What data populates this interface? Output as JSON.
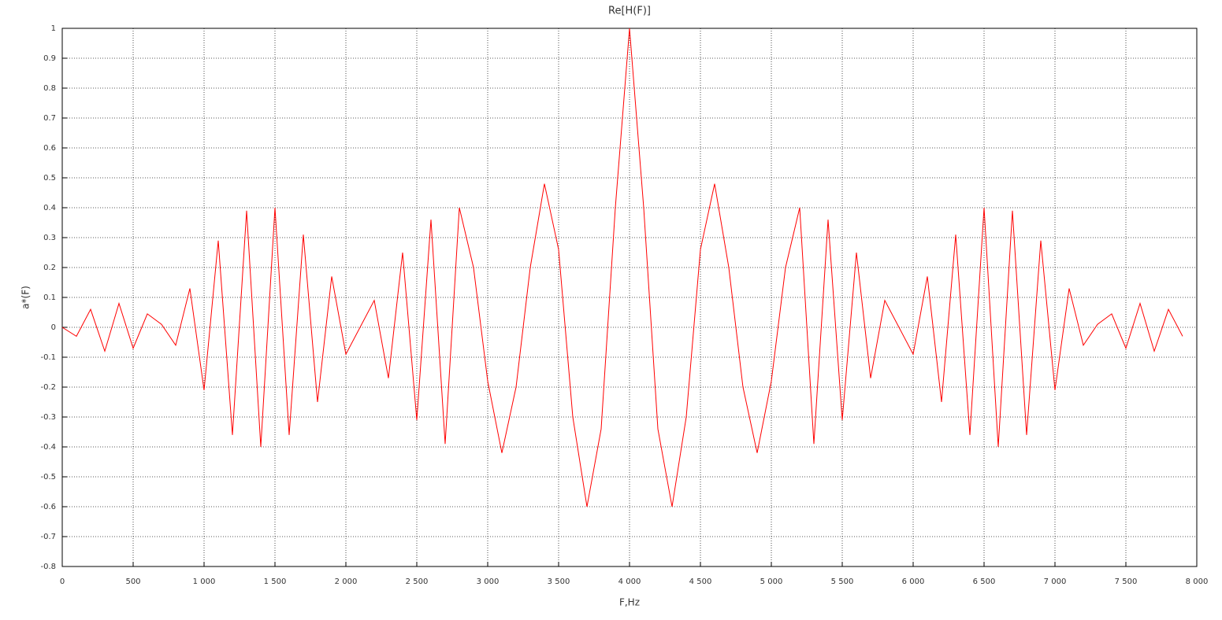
{
  "chart_data": {
    "type": "line",
    "title": "Re[H(F)]",
    "x_label": "F,Hz",
    "y_label": "a*(F)",
    "x": [
      0,
      100,
      200,
      300,
      400,
      500,
      600,
      700,
      800,
      900,
      1000,
      1100,
      1200,
      1300,
      1400,
      1500,
      1600,
      1700,
      1800,
      1900,
      2000,
      2100,
      2200,
      2300,
      2400,
      2500,
      2600,
      2700,
      2800,
      2900,
      3000,
      3100,
      3200,
      3300,
      3400,
      3500,
      3600,
      3700,
      3800,
      3900,
      4000,
      4100,
      4200,
      4300,
      4400,
      4500,
      4600,
      4700,
      4800,
      4900,
      5000,
      5100,
      5200,
      5300,
      5400,
      5500,
      5600,
      5700,
      5800,
      5900,
      6000,
      6100,
      6200,
      6300,
      6400,
      6500,
      6600,
      6700,
      6800,
      6900,
      7000,
      7100,
      7200,
      7300,
      7400,
      7500,
      7600,
      7700,
      7800,
      7900
    ],
    "series": [
      {
        "name": "Re[H(F)]",
        "color": "#ff0000",
        "values": [
          0,
          -0.03,
          0.06,
          -0.08,
          0.08,
          -0.07,
          0.045,
          0.01,
          -0.06,
          0.13,
          -0.21,
          0.29,
          -0.36,
          0.39,
          -0.4,
          0.4,
          -0.36,
          0.31,
          -0.25,
          0.17,
          -0.09,
          0,
          0.09,
          -0.17,
          0.25,
          -0.31,
          0.36,
          -0.39,
          0.4,
          0.2,
          -0.18,
          -0.42,
          -0.2,
          0.2,
          0.48,
          0.26,
          -0.3,
          -0.6,
          -0.34,
          0.4,
          1,
          0.4,
          -0.34,
          -0.6,
          -0.3,
          0.26,
          0.48,
          0.2,
          -0.2,
          -0.42,
          -0.18,
          0.2,
          0.4,
          -0.39,
          0.36,
          -0.31,
          0.25,
          -0.17,
          0.09,
          0,
          -0.09,
          0.17,
          -0.25,
          0.31,
          -0.36,
          0.4,
          -0.4,
          0.39,
          -0.36,
          0.29,
          -0.21,
          0.13,
          -0.06,
          0.01,
          0.045,
          -0.07,
          0.08,
          -0.08,
          0.06,
          -0.03
        ]
      }
    ],
    "xlim": [
      0,
      8000
    ],
    "ylim": [
      -0.8,
      1
    ],
    "xticks": [
      0,
      500,
      {
        "value": 1000,
        "label": "1 000"
      },
      {
        "value": 1500,
        "label": "1 500"
      },
      {
        "value": 2000,
        "label": "2 000"
      },
      {
        "value": 2500,
        "label": "2 500"
      },
      {
        "value": 3000,
        "label": "3 000"
      },
      {
        "value": 3500,
        "label": "3 500"
      },
      {
        "value": 4000,
        "label": "4 000"
      },
      {
        "value": 4500,
        "label": "4 500"
      },
      {
        "value": 5000,
        "label": "5 000"
      },
      {
        "value": 5500,
        "label": "5 500"
      },
      {
        "value": 6000,
        "label": "6 000"
      },
      {
        "value": 6500,
        "label": "6 500"
      },
      {
        "value": 7000,
        "label": "7 000"
      },
      {
        "value": 7500,
        "label": "7 500"
      },
      {
        "value": 8000,
        "label": "8 000"
      }
    ],
    "yticks": [
      -0.8,
      -0.7,
      -0.6,
      -0.5,
      -0.4,
      -0.3,
      -0.2,
      -0.1,
      0,
      0.1,
      0.2,
      0.3,
      0.4,
      0.5,
      0.6,
      0.7,
      0.8,
      0.9,
      1
    ],
    "grid": true
  }
}
